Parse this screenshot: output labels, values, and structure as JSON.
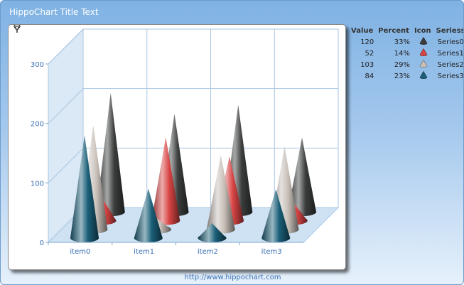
{
  "title": "HippoChart Title Text",
  "footer": "http://www.hippochart.com",
  "legend": {
    "headers": [
      "Value",
      "Percent",
      "Icon",
      "Seriess"
    ],
    "rows": [
      {
        "value": "120",
        "percent": "33%",
        "series": "Series0"
      },
      {
        "value": "52",
        "percent": "14%",
        "series": "Series1"
      },
      {
        "value": "103",
        "percent": "29%",
        "series": "Series2"
      },
      {
        "value": "84",
        "percent": "23%",
        "series": "Series3"
      }
    ]
  },
  "chart_data": {
    "type": "bar",
    "subtype": "3d-cone",
    "categories": [
      "item0",
      "item1",
      "item2",
      "item3"
    ],
    "ylim": [
      0,
      300
    ],
    "yticks": [
      "0",
      "100",
      "200",
      "300"
    ],
    "grid": true,
    "legend_position": "right",
    "series": [
      {
        "name": "Series0",
        "color": "#3c3e3e",
        "values": [
          200,
          165,
          180,
          125
        ]
      },
      {
        "name": "Series1",
        "color": "#d84444",
        "values": [
          38,
          140,
          108,
          30
        ]
      },
      {
        "name": "Series2",
        "color": "#c8bfb8",
        "values": [
          175,
          18,
          125,
          140
        ]
      },
      {
        "name": "Series3",
        "color": "#1a5e77",
        "values": [
          173,
          83,
          25,
          82
        ]
      }
    ]
  }
}
